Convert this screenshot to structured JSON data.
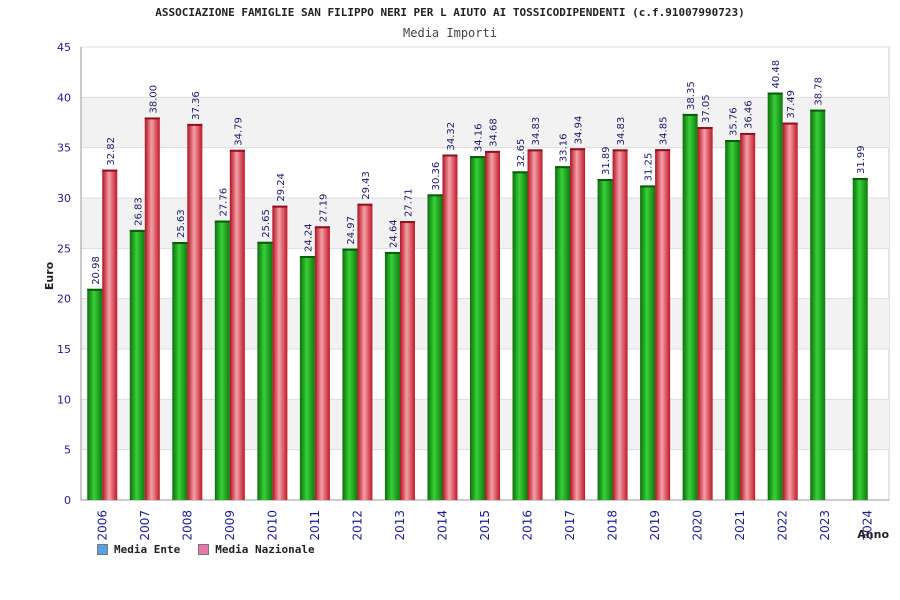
{
  "chart_data": {
    "type": "bar",
    "title": "ASSOCIAZIONE FAMIGLIE SAN FILIPPO NERI PER L AIUTO AI TOSSICODIPENDENTI (c.f.91007990723)",
    "subtitle": "Media Importi",
    "xlabel": "Anno",
    "ylabel": "Euro",
    "ylim": [
      0,
      45
    ],
    "yticks": [
      "0",
      "5",
      "10",
      "15",
      "20",
      "25",
      "30",
      "35",
      "40",
      "45"
    ],
    "categories": [
      "2006",
      "2007",
      "2008",
      "2009",
      "2010",
      "2011",
      "2012",
      "2013",
      "2014",
      "2015",
      "2016",
      "2017",
      "2018",
      "2019",
      "2020",
      "2021",
      "2022",
      "2023",
      "2024"
    ],
    "series": [
      {
        "name": "Media Ente",
        "color": "#1ea01e",
        "values": [
          20.98,
          26.83,
          25.63,
          27.76,
          25.65,
          24.24,
          24.97,
          24.64,
          30.36,
          34.16,
          32.65,
          33.16,
          31.89,
          31.25,
          38.35,
          35.76,
          40.48,
          38.78,
          31.99
        ],
        "labels": [
          "20.98",
          "26.83",
          "25.63",
          "27.76",
          "25.65",
          "24.24",
          "24.97",
          "24.64",
          "30.36",
          "34.16",
          "32.65",
          "33.16",
          "31.89",
          "31.25",
          "38.35",
          "35.76",
          "40.48",
          "38.78",
          "31.99"
        ]
      },
      {
        "name": "Media Nazionale",
        "color": "#e0303e",
        "values": [
          32.82,
          38.0,
          37.36,
          34.79,
          29.24,
          27.19,
          29.43,
          27.71,
          34.32,
          34.68,
          34.83,
          34.94,
          34.83,
          34.85,
          37.05,
          36.46,
          37.49,
          null,
          null
        ],
        "labels": [
          "32.82",
          "38.00",
          "37.36",
          "34.79",
          "29.24",
          "27.19",
          "29.43",
          "27.71",
          "34.32",
          "34.68",
          "34.83",
          "34.94",
          "34.83",
          "34.85",
          "37.05",
          "36.46",
          "37.49",
          "",
          ""
        ]
      }
    ],
    "legend": [
      {
        "label": "Media Ente",
        "color": "#5aa0e8"
      },
      {
        "label": "Media Nazionale",
        "color": "#e878a8"
      }
    ],
    "legend_position": "bottom-left",
    "grid": true
  }
}
